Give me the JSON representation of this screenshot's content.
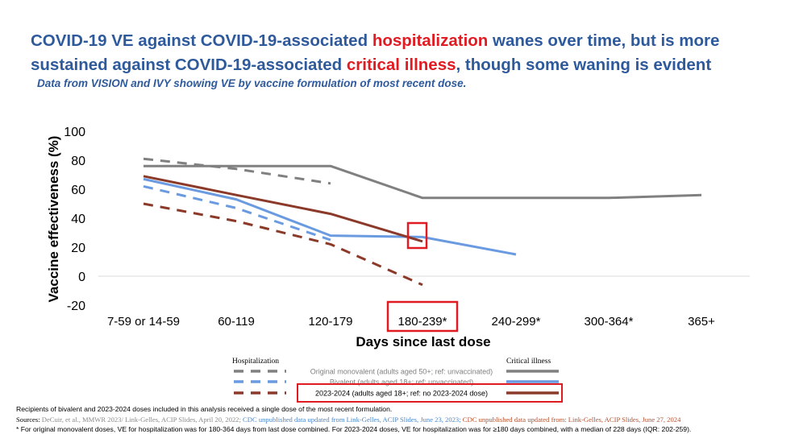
{
  "header": {
    "title_a": "COVID-19 VE against COVID-19-associated ",
    "title_b": "hospitalization",
    "title_c": " wanes over time, but is more sustained against COVID-19-associated ",
    "title_d": "critical illness",
    "title_e": ", though some waning is evident",
    "subtitle": "Data from VISION and IVY showing VE by vaccine formulation of most recent dose."
  },
  "chart_data": {
    "type": "line",
    "categories": [
      "7-59 or 14-59",
      "60-119",
      "120-179",
      "180-239*",
      "240-299*",
      "300-364*",
      "365+"
    ],
    "xlabel": "Days since last dose",
    "ylabel": "Vaccine effectiveness (%)",
    "ylim": [
      -20,
      100
    ],
    "yticks": [
      -20,
      0,
      20,
      40,
      60,
      80,
      100
    ],
    "series": [
      {
        "name": "Original monovalent - critical illness",
        "color": "#808080",
        "dash": false,
        "values": [
          76,
          76,
          76,
          54,
          54,
          54,
          56
        ]
      },
      {
        "name": "Original monovalent - hospitalization",
        "color": "#808080",
        "dash": true,
        "values": [
          81,
          74,
          64,
          null,
          null,
          null,
          null
        ]
      },
      {
        "name": "Bivalent - critical illness",
        "color": "#6a9ae0",
        "dash": false,
        "values": [
          67,
          53,
          28,
          27,
          15,
          null,
          null
        ]
      },
      {
        "name": "Bivalent - hospitalization",
        "color": "#6a9ae0",
        "dash": true,
        "values": [
          62,
          47,
          25,
          null,
          null,
          null,
          null
        ]
      },
      {
        "name": "2023-2024 - critical illness",
        "color": "#8b3a2a",
        "dash": false,
        "values": [
          69,
          56,
          43,
          24,
          null,
          null,
          null
        ]
      },
      {
        "name": "2023-2024 - hospitalization",
        "color": "#8b3a2a",
        "dash": true,
        "values": [
          50,
          38,
          22,
          -6,
          null,
          null,
          null
        ]
      }
    ],
    "legend": {
      "hosp_heading": "Hospitalization",
      "crit_heading": "Critical illness",
      "entries": [
        {
          "label": "Original monovalent (adults aged 50+; ref: unvaccinated)",
          "color": "#808080"
        },
        {
          "label": "Bivalent (adults aged 18+; ref: unvaccinated)",
          "color": "#6a9ae0"
        },
        {
          "label": "2023-2024 (adults aged 18+; ref: no 2023-2024 dose)",
          "color": "#8b3a2a"
        }
      ]
    },
    "highlight_color": "#e11b22"
  },
  "footer": {
    "note": "Recipients of bivalent and 2023-2024 doses included in this analysis received a single dose of the most recent formulation.",
    "sources_prefix": "Sources: ",
    "source_1": "DeCuir, et al., MMWR 2023/ Link-Gelles, ACIP Slides, April 20, 2022;",
    "source_2": " CDC unpublished data updated from Link-Gelles, ACIP Slides, June 23, 2023;",
    "source_3": " CDC unpublished data updated from: Link-Gelles, ACIP Slides, June 27, 2024",
    "footnote": "* For original monovalent doses, VE for hospitalization was for 180-364 days from last dose combined. For 2023-2024 doses, VE for hospitalization was for ≥180 days combined, with a median of 228 days (IQR: 202-259).",
    "color_1": "#8a8a8a",
    "color_2": "#4a86c8",
    "color_3": "#b5512e"
  }
}
